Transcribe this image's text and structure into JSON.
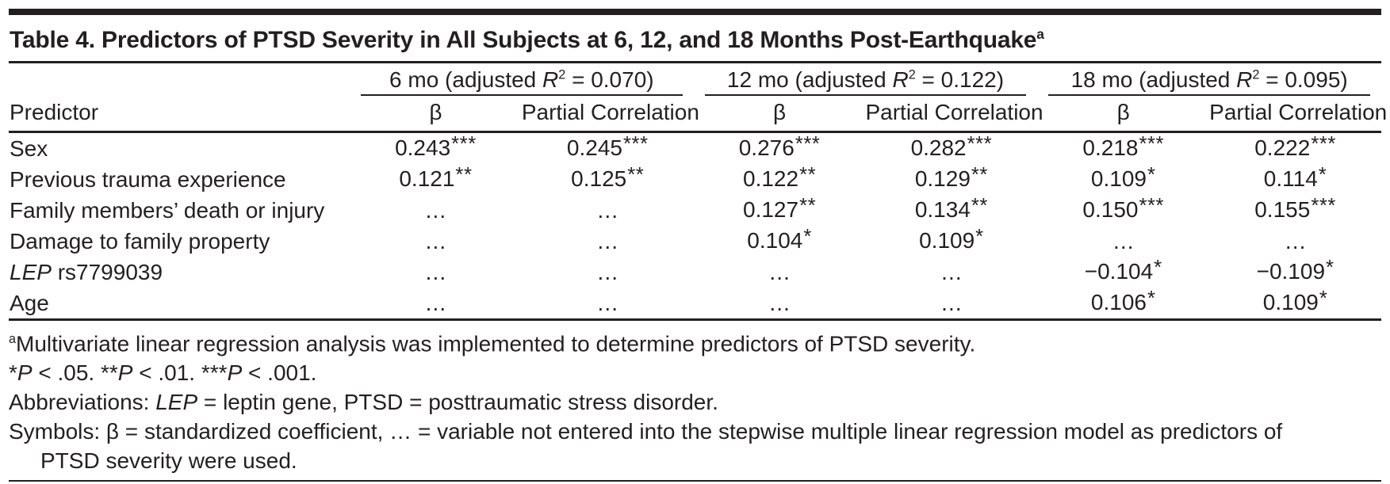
{
  "title": {
    "segments": [
      {
        "t": "Table 4. Predictors of PTSD Severity in All Subjects at 6, 12, and 18 Months Post-Earthquake"
      },
      {
        "sup": "a"
      }
    ]
  },
  "table": {
    "predictor_header": "Predictor",
    "groups": [
      {
        "segments": [
          {
            "t": "6 mo (adjusted "
          },
          {
            "i": "R"
          },
          {
            "sup": "2"
          },
          {
            "t": " = 0.070)"
          }
        ]
      },
      {
        "segments": [
          {
            "t": "12 mo (adjusted "
          },
          {
            "i": "R"
          },
          {
            "sup": "2"
          },
          {
            "t": " = 0.122)"
          }
        ]
      },
      {
        "segments": [
          {
            "t": "18 mo (adjusted "
          },
          {
            "i": "R"
          },
          {
            "sup": "2"
          },
          {
            "t": " = 0.095)"
          }
        ]
      }
    ],
    "sub_headers": {
      "beta": "β",
      "partial": "Partial Correlation"
    },
    "rows": [
      {
        "pred_i": "",
        "pred_t": "Sex",
        "values": [
          "0.243***",
          "0.245***",
          "0.276***",
          "0.282***",
          "0.218***",
          "0.222***"
        ]
      },
      {
        "pred_i": "",
        "pred_t": "Previous trauma experience",
        "values": [
          "0.121**",
          "0.125**",
          "0.122**",
          "0.129**",
          "0.109*",
          "0.114*"
        ]
      },
      {
        "pred_i": "",
        "pred_t": "Family members’ death or injury",
        "values": [
          "…",
          "…",
          "0.127**",
          "0.134**",
          "0.150***",
          "0.155***"
        ]
      },
      {
        "pred_i": "",
        "pred_t": "Damage to family property",
        "values": [
          "…",
          "…",
          "0.104*",
          "0.109*",
          "…",
          "…"
        ]
      },
      {
        "pred_i": "LEP",
        "pred_t": " rs7799039",
        "values": [
          "…",
          "…",
          "…",
          "…",
          "−0.104*",
          "−0.109*"
        ]
      },
      {
        "pred_i": "",
        "pred_t": "Age",
        "values": [
          "…",
          "…",
          "…",
          "…",
          "0.106*",
          "0.109*"
        ]
      }
    ]
  },
  "footnotes": [
    {
      "indent": false,
      "segments": [
        {
          "sup": "a"
        },
        {
          "t": "Multivariate linear regression analysis was implemented to determine predictors of PTSD severity."
        }
      ]
    },
    {
      "indent": false,
      "segments": [
        {
          "t": "*"
        },
        {
          "i": "P"
        },
        {
          "t": " < .05.  **"
        },
        {
          "i": "P"
        },
        {
          "t": " < .01.  ***"
        },
        {
          "i": "P"
        },
        {
          "t": " < .001."
        }
      ]
    },
    {
      "indent": false,
      "segments": [
        {
          "t": "Abbreviations: "
        },
        {
          "i": "LEP"
        },
        {
          "t": " = leptin gene, PTSD = posttraumatic stress disorder."
        }
      ]
    },
    {
      "indent": false,
      "segments": [
        {
          "t": "Symbols: β = standardized coefficient, … = variable not entered into the stepwise multiple linear regression model as predictors of"
        }
      ]
    },
    {
      "indent": true,
      "segments": [
        {
          "t": "PTSD severity were used."
        }
      ]
    }
  ],
  "colors": {
    "ink": "#231f20",
    "background": "#ffffff"
  }
}
